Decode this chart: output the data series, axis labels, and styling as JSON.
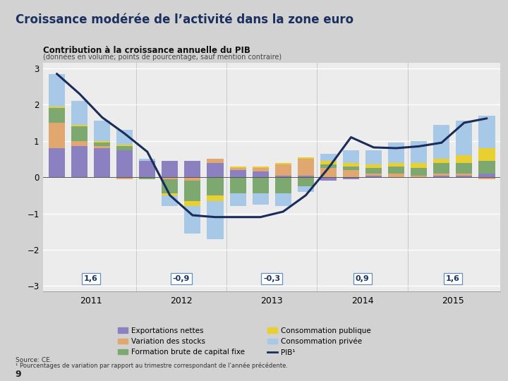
{
  "title": "Croissance modérée de l’activité dans la zone euro",
  "subtitle": "Contribution à la croissance annuelle du PIB",
  "subtitle2": "(données en volume; points de pourcentage, sauf mention contraire)",
  "background_color": "#d2d2d2",
  "chart_bg": "#ececec",
  "ylim": [
    -3.15,
    3.15
  ],
  "ytick_vals": [
    -3,
    -2,
    -1,
    0,
    1,
    2,
    3
  ],
  "year_labels": [
    "2011",
    "2012",
    "2013",
    "2014",
    "2015"
  ],
  "year_values": [
    "1,6",
    "-0,9",
    "-0,3",
    "0,9",
    "1,6"
  ],
  "net_exports": [
    0.8,
    0.85,
    0.8,
    0.75,
    0.45,
    0.45,
    0.45,
    0.4,
    0.2,
    0.15,
    0.05,
    0.05,
    -0.1,
    -0.05,
    0.05,
    0.0,
    0.0,
    0.05,
    0.05,
    0.1
  ],
  "inventory": [
    0.7,
    0.15,
    0.05,
    -0.05,
    0.0,
    -0.05,
    -0.1,
    0.1,
    0.05,
    0.1,
    0.3,
    0.45,
    0.25,
    0.2,
    0.05,
    0.1,
    0.05,
    0.05,
    0.05,
    -0.05
  ],
  "investment": [
    0.4,
    0.4,
    0.1,
    0.1,
    -0.05,
    -0.4,
    -0.55,
    -0.5,
    -0.45,
    -0.45,
    -0.45,
    -0.25,
    0.1,
    0.1,
    0.15,
    0.2,
    0.2,
    0.3,
    0.3,
    0.35
  ],
  "gov_cons": [
    0.05,
    0.05,
    0.05,
    0.05,
    0.0,
    -0.05,
    -0.15,
    -0.15,
    0.05,
    0.05,
    0.05,
    0.05,
    0.1,
    0.1,
    0.1,
    0.1,
    0.15,
    0.1,
    0.2,
    0.35
  ],
  "private_cons": [
    0.9,
    0.65,
    0.55,
    0.4,
    0.05,
    -0.3,
    -0.75,
    -1.05,
    -0.35,
    -0.3,
    -0.35,
    -0.15,
    0.2,
    0.35,
    0.4,
    0.55,
    0.6,
    0.95,
    0.95,
    0.9
  ],
  "pib_line": [
    2.85,
    2.3,
    1.65,
    1.2,
    0.7,
    -0.5,
    -1.05,
    -1.1,
    -1.1,
    -1.1,
    -0.95,
    -0.5,
    0.25,
    1.1,
    0.82,
    0.8,
    0.85,
    0.95,
    1.5,
    1.62
  ],
  "color_net_exports": "#8b80c0",
  "color_investment": "#7da870",
  "color_private_cons": "#a8c8e8",
  "color_inventory": "#e0a870",
  "color_gov_cons": "#e8d030",
  "color_pib": "#1a2d5a",
  "source": "Source: CE.",
  "footnote": "¹ Pourcentages de variation par rapport au trimestre correspondant de l’année précédente.",
  "page_num": "9"
}
